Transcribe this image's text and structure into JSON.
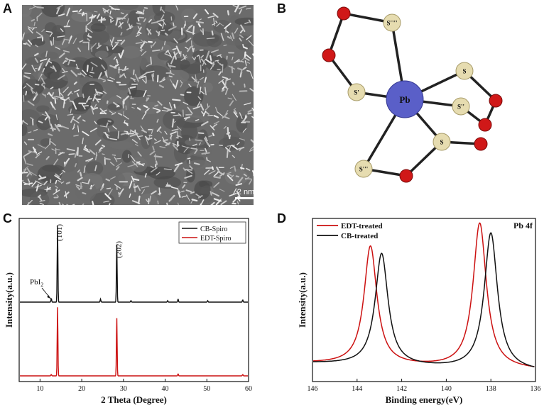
{
  "panels": {
    "A": {
      "letter": "A",
      "scale_bar_label": "2 nm"
    },
    "B": {
      "letter": "B",
      "center_atom": "Pb",
      "s_labels": [
        "S''''",
        "S",
        "S'",
        "S''",
        "S",
        "S'''"
      ],
      "colors": {
        "pb": "#5a5fc8",
        "s": "#e6dcb0",
        "o": "#d01818",
        "bond": "#222222"
      }
    },
    "C": {
      "letter": "C"
    },
    "D": {
      "letter": "D"
    }
  },
  "chart_data": [
    {
      "panel": "C",
      "type": "line",
      "xlabel": "2 Theta (Degree)",
      "ylabel": "Intensity(a.u.)",
      "xlim": [
        5,
        60
      ],
      "xticks": [
        10,
        20,
        30,
        40,
        50,
        60
      ],
      "grid": false,
      "legend_position": "top-right",
      "series": [
        {
          "name": "EDT-Spiro",
          "color": "#cc1111",
          "baseline_offset": 0,
          "peaks": [
            {
              "x": 12.7,
              "h": 0.02
            },
            {
              "x": 14.2,
              "h": 1.0
            },
            {
              "x": 28.4,
              "h": 0.85
            },
            {
              "x": 43.1,
              "h": 0.03
            },
            {
              "x": 58.6,
              "h": 0.02
            }
          ]
        },
        {
          "name": "CB-Spiro",
          "color": "#111111",
          "baseline_offset": 1,
          "peaks": [
            {
              "x": 12.7,
              "h": 0.05
            },
            {
              "x": 14.2,
              "h": 1.0
            },
            {
              "x": 24.5,
              "h": 0.04
            },
            {
              "x": 28.4,
              "h": 0.76
            },
            {
              "x": 31.8,
              "h": 0.02
            },
            {
              "x": 40.6,
              "h": 0.02
            },
            {
              "x": 43.1,
              "h": 0.04
            },
            {
              "x": 50.2,
              "h": 0.02
            },
            {
              "x": 58.6,
              "h": 0.03
            }
          ]
        }
      ],
      "annotations": [
        {
          "text": "(101)",
          "x": 14.2
        },
        {
          "text": "(202)",
          "x": 28.4
        },
        {
          "text": "PbI",
          "subscript": "2",
          "x": 12.7
        }
      ]
    },
    {
      "panel": "D",
      "type": "line",
      "title": "Pb 4f",
      "xlabel": "Binding energy(eV)",
      "ylabel": "Intensity(a.u.)",
      "xlim": [
        146,
        136
      ],
      "xticks": [
        146,
        144,
        142,
        140,
        138,
        136
      ],
      "grid": false,
      "legend_position": "top-left",
      "series": [
        {
          "name": "EDT-treated",
          "color": "#cc1111",
          "background_start": 0.05,
          "background_end": 0.01,
          "peaks": [
            {
              "x": 143.4,
              "h": 0.72,
              "w": 0.35
            },
            {
              "x": 138.5,
              "h": 0.88,
              "w": 0.36
            }
          ]
        },
        {
          "name": "CB-treated",
          "color": "#111111",
          "background_start": 0.05,
          "background_end": 0.0,
          "peaks": [
            {
              "x": 142.9,
              "h": 0.68,
              "w": 0.35
            },
            {
              "x": 138.0,
              "h": 0.83,
              "w": 0.36
            }
          ]
        }
      ]
    }
  ]
}
